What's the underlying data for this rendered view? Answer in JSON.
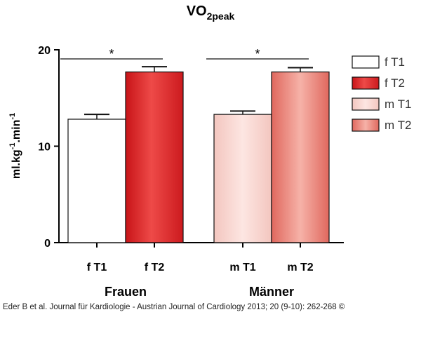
{
  "chart_data": {
    "type": "bar",
    "title": "VO",
    "title_subscript": "2peak",
    "ylabel": "ml.kg",
    "ylabel_sup1": "-1",
    "ylabel_mid": ".min",
    "ylabel_sup2": "-1",
    "ylim": [
      0,
      20
    ],
    "yticks": [
      0,
      10,
      20
    ],
    "groups": [
      {
        "label": "Frauen",
        "categories": [
          "f T1",
          "f T2"
        ]
      },
      {
        "label": "Männer",
        "categories": [
          "m T1",
          "m T2"
        ]
      }
    ],
    "categories": [
      "f T1",
      "f T2",
      "m T1",
      "m T2"
    ],
    "values": [
      12.8,
      17.7,
      13.3,
      17.7
    ],
    "errors": [
      0.5,
      0.55,
      0.35,
      0.45
    ],
    "significance": [
      {
        "between": [
          "f T1",
          "f T2"
        ],
        "label": "*"
      },
      {
        "between": [
          "m T1",
          "m T2"
        ],
        "label": "*"
      }
    ],
    "legend": {
      "placement": "right",
      "entries": [
        "f T1",
        "f T2",
        "m T1",
        "m T2"
      ]
    },
    "grid": false
  },
  "colors": {
    "f T1": "#ffffff",
    "f T2": "#d9262b",
    "m T1": "#f8d2cc",
    "m T2": "#e9857a"
  },
  "caption": "Eder B et al. Journal für Kardiologie - Austrian Journal of Cardiology 2013; 20 (9-10): 262-268 ©"
}
